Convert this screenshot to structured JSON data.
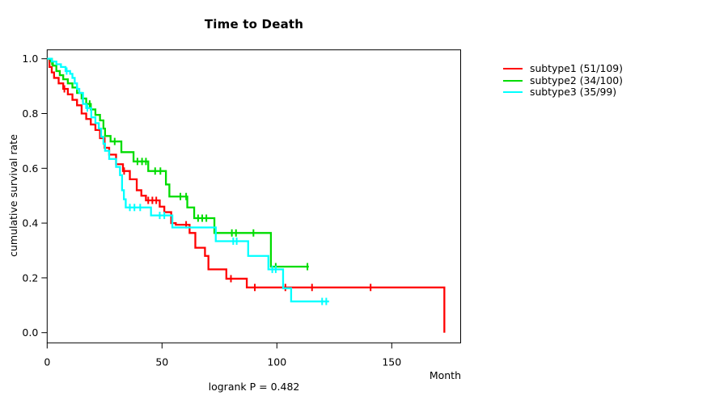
{
  "chart_data": {
    "type": "line",
    "variant": "kaplan_meier_step",
    "title": "Time to Death",
    "xlabel": "Month",
    "ylabel": "cumulative survival rate",
    "annotation": "logrank P = 0.482",
    "xlim": [
      0,
      180
    ],
    "ylim": [
      0,
      1
    ],
    "x_ticks": [
      0,
      50,
      100,
      150
    ],
    "y_ticks": [
      0.0,
      0.2,
      0.4,
      0.6,
      0.8,
      1.0
    ],
    "y_tick_labels": [
      "0.0",
      "0.2",
      "0.4",
      "0.6",
      "0.8",
      "1.0"
    ],
    "grid": false,
    "legend_position": "right",
    "series": [
      {
        "key": "subtype1",
        "name": "subtype1 (51/109)",
        "color": "#ff0000",
        "n": 109,
        "events": 51,
        "points": [
          [
            0,
            1.0
          ],
          [
            1,
            0.97
          ],
          [
            2,
            0.95
          ],
          [
            3,
            0.93
          ],
          [
            5,
            0.91
          ],
          [
            7,
            0.89
          ],
          [
            9,
            0.87
          ],
          [
            11,
            0.85
          ],
          [
            13,
            0.83
          ],
          [
            15,
            0.8
          ],
          [
            17,
            0.78
          ],
          [
            19,
            0.76
          ],
          [
            21,
            0.74
          ],
          [
            23,
            0.71
          ],
          [
            25,
            0.675
          ],
          [
            27,
            0.65
          ],
          [
            30,
            0.615
          ],
          [
            33,
            0.59
          ],
          [
            36,
            0.56
          ],
          [
            39,
            0.52
          ],
          [
            41,
            0.5
          ],
          [
            43,
            0.483
          ],
          [
            49,
            0.46
          ],
          [
            51,
            0.44
          ],
          [
            54,
            0.4
          ],
          [
            56,
            0.394
          ],
          [
            62,
            0.364
          ],
          [
            64.5,
            0.31
          ],
          [
            68.7,
            0.28
          ],
          [
            70.2,
            0.231
          ],
          [
            78,
            0.197
          ],
          [
            86.9,
            0.165
          ],
          [
            172.9,
            0.0
          ]
        ],
        "censor_marks": [
          [
            7.5,
            0.89
          ],
          [
            33.5,
            0.59
          ],
          [
            44,
            0.483
          ],
          [
            45.8,
            0.483
          ],
          [
            47.5,
            0.483
          ],
          [
            60.5,
            0.394
          ],
          [
            80,
            0.197
          ],
          [
            90.4,
            0.165
          ],
          [
            103.7,
            0.165
          ],
          [
            115.3,
            0.165
          ],
          [
            140.8,
            0.165
          ]
        ]
      },
      {
        "key": "subtype2",
        "name": "subtype2 (34/100)",
        "color": "#00dc00",
        "n": 100,
        "events": 34,
        "points": [
          [
            0,
            1.0
          ],
          [
            1.5,
            0.99
          ],
          [
            2.5,
            0.975
          ],
          [
            4,
            0.955
          ],
          [
            5.5,
            0.94
          ],
          [
            7,
            0.925
          ],
          [
            9,
            0.91
          ],
          [
            11,
            0.895
          ],
          [
            13,
            0.875
          ],
          [
            15,
            0.855
          ],
          [
            17,
            0.835
          ],
          [
            19,
            0.815
          ],
          [
            21,
            0.795
          ],
          [
            23,
            0.775
          ],
          [
            24.5,
            0.745
          ],
          [
            25.2,
            0.718
          ],
          [
            27.6,
            0.698
          ],
          [
            32.3,
            0.659
          ],
          [
            37.6,
            0.625
          ],
          [
            44,
            0.59
          ],
          [
            51.7,
            0.541
          ],
          [
            53.2,
            0.497
          ],
          [
            61,
            0.457
          ],
          [
            64,
            0.418
          ],
          [
            72.8,
            0.364
          ],
          [
            97.4,
            0.241
          ],
          [
            113.9,
            0.241
          ]
        ],
        "censor_marks": [
          [
            2.1,
            0.99
          ],
          [
            15.5,
            0.855
          ],
          [
            18.5,
            0.835
          ],
          [
            29.4,
            0.698
          ],
          [
            39.3,
            0.625
          ],
          [
            41.3,
            0.625
          ],
          [
            43,
            0.625
          ],
          [
            47,
            0.59
          ],
          [
            49.3,
            0.59
          ],
          [
            58,
            0.497
          ],
          [
            60.5,
            0.497
          ],
          [
            65.7,
            0.418
          ],
          [
            67.5,
            0.418
          ],
          [
            69.3,
            0.418
          ],
          [
            80.4,
            0.364
          ],
          [
            82.2,
            0.364
          ],
          [
            89.8,
            0.364
          ],
          [
            99.5,
            0.241
          ],
          [
            113.3,
            0.241
          ]
        ]
      },
      {
        "key": "subtype3",
        "name": "subtype3 (35/99)",
        "color": "#00ffff",
        "n": 99,
        "events": 35,
        "points": [
          [
            0,
            1.0
          ],
          [
            2,
            0.99
          ],
          [
            4,
            0.98
          ],
          [
            6,
            0.97
          ],
          [
            8,
            0.955
          ],
          [
            10,
            0.945
          ],
          [
            11,
            0.93
          ],
          [
            12,
            0.91
          ],
          [
            13,
            0.89
          ],
          [
            14,
            0.875
          ],
          [
            15.6,
            0.835
          ],
          [
            17,
            0.82
          ],
          [
            19.2,
            0.786
          ],
          [
            21,
            0.765
          ],
          [
            22.5,
            0.745
          ],
          [
            23.5,
            0.715
          ],
          [
            24.5,
            0.69
          ],
          [
            25.2,
            0.664
          ],
          [
            27,
            0.634
          ],
          [
            30,
            0.605
          ],
          [
            31.7,
            0.575
          ],
          [
            32.6,
            0.52
          ],
          [
            33.4,
            0.487
          ],
          [
            34.2,
            0.457
          ],
          [
            45.2,
            0.428
          ],
          [
            54.5,
            0.384
          ],
          [
            73.4,
            0.334
          ],
          [
            87.5,
            0.28
          ],
          [
            96.3,
            0.231
          ],
          [
            102.7,
            0.162
          ],
          [
            106.2,
            0.114
          ],
          [
            122.7,
            0.114
          ]
        ],
        "censor_marks": [
          [
            8.5,
            0.955
          ],
          [
            17.5,
            0.82
          ],
          [
            36,
            0.457
          ],
          [
            38,
            0.457
          ],
          [
            40.5,
            0.457
          ],
          [
            49,
            0.428
          ],
          [
            51,
            0.428
          ],
          [
            81,
            0.334
          ],
          [
            82.5,
            0.334
          ],
          [
            98,
            0.231
          ],
          [
            99.5,
            0.231
          ],
          [
            119.7,
            0.114
          ],
          [
            121.5,
            0.114
          ]
        ]
      }
    ]
  }
}
